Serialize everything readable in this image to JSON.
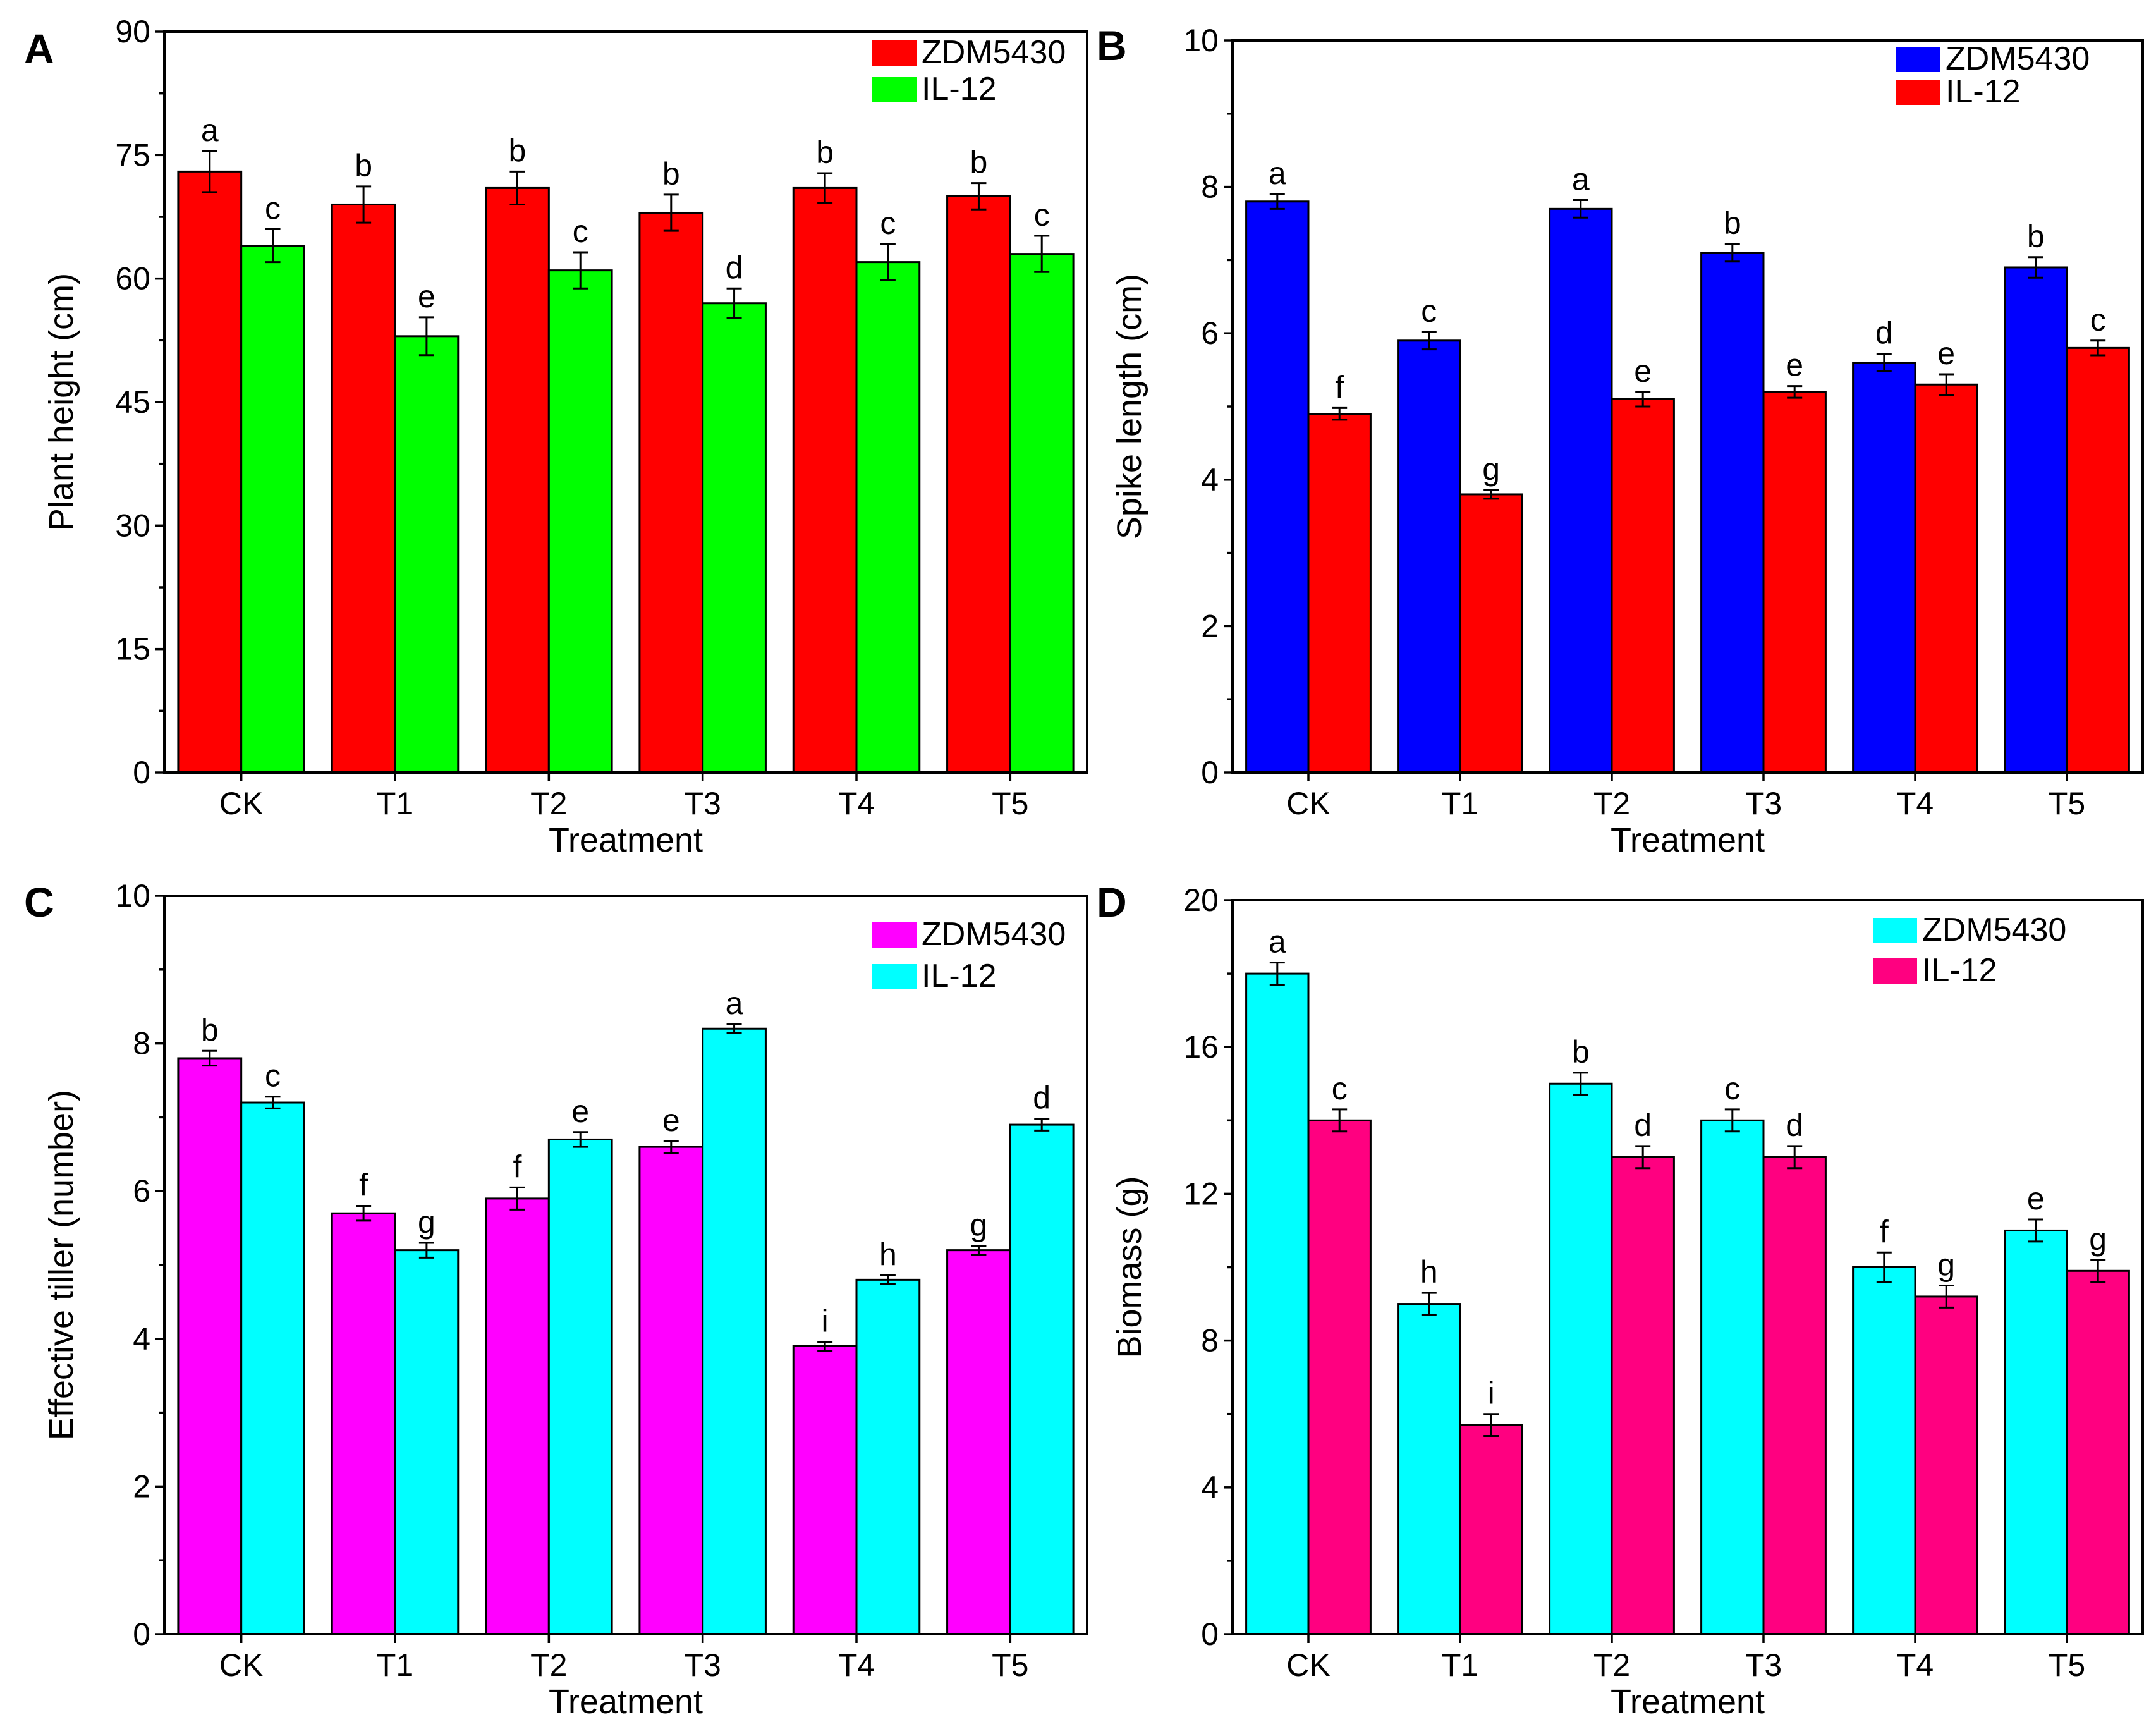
{
  "chart_data": [
    {
      "panel": "A",
      "type": "bar",
      "title": "",
      "xlabel": "Treatment",
      "ylabel": "Plant height (cm)",
      "categories": [
        "CK",
        "T1",
        "T2",
        "T3",
        "T4",
        "T5"
      ],
      "ylim": [
        0,
        90
      ],
      "yticks": [
        0,
        15,
        30,
        45,
        60,
        75,
        90
      ],
      "series": [
        {
          "name": "ZDM5430",
          "color": "#ff0000",
          "values": [
            73,
            69,
            71,
            68,
            71,
            70
          ],
          "errors": [
            2.5,
            2.2,
            2.0,
            2.2,
            1.8,
            1.6
          ],
          "letters": [
            "a",
            "b",
            "b",
            "b",
            "b",
            "b"
          ]
        },
        {
          "name": "IL-12",
          "color": "#00ff00",
          "values": [
            64,
            53,
            61,
            57,
            62,
            63
          ],
          "errors": [
            2.0,
            2.3,
            2.2,
            1.8,
            2.2,
            2.2
          ],
          "letters": [
            "c",
            "e",
            "c",
            "d",
            "c",
            "c"
          ]
        }
      ]
    },
    {
      "panel": "B",
      "type": "bar",
      "title": "",
      "xlabel": "Treatment",
      "ylabel": "Spike length (cm)",
      "categories": [
        "CK",
        "T1",
        "T2",
        "T3",
        "T4",
        "T5"
      ],
      "ylim": [
        0,
        10
      ],
      "yticks": [
        0,
        2,
        4,
        6,
        8,
        10
      ],
      "series": [
        {
          "name": "ZDM5430",
          "color": "#0000ff",
          "values": [
            7.8,
            5.9,
            7.7,
            7.1,
            5.6,
            6.9
          ],
          "errors": [
            0.1,
            0.12,
            0.12,
            0.12,
            0.12,
            0.14
          ],
          "letters": [
            "a",
            "c",
            "a",
            "b",
            "d",
            "b"
          ]
        },
        {
          "name": "IL-12",
          "color": "#ff0000",
          "values": [
            4.9,
            3.8,
            5.1,
            5.2,
            5.3,
            5.8
          ],
          "errors": [
            0.08,
            0.06,
            0.1,
            0.08,
            0.14,
            0.1
          ],
          "letters": [
            "f",
            "g",
            "e",
            "e",
            "e",
            "c"
          ]
        }
      ]
    },
    {
      "panel": "C",
      "type": "bar",
      "title": "",
      "xlabel": "Treatment",
      "ylabel": "Effective tiller (number)",
      "categories": [
        "CK",
        "T1",
        "T2",
        "T3",
        "T4",
        "T5"
      ],
      "ylim": [
        0,
        10
      ],
      "yticks": [
        0,
        2,
        4,
        6,
        8,
        10
      ],
      "series": [
        {
          "name": "ZDM5430",
          "color": "#ff00ff",
          "values": [
            7.8,
            5.7,
            5.9,
            6.6,
            3.9,
            5.2
          ],
          "errors": [
            0.1,
            0.1,
            0.15,
            0.08,
            0.06,
            0.06
          ],
          "letters": [
            "b",
            "f",
            "f",
            "e",
            "i",
            "g"
          ]
        },
        {
          "name": "IL-12",
          "color": "#00ffff",
          "values": [
            7.2,
            5.2,
            6.7,
            8.2,
            4.8,
            6.9
          ],
          "errors": [
            0.08,
            0.1,
            0.1,
            0.06,
            0.06,
            0.08
          ],
          "letters": [
            "c",
            "g",
            "e",
            "a",
            "h",
            "d"
          ]
        }
      ]
    },
    {
      "panel": "D",
      "type": "bar",
      "title": "",
      "xlabel": "Treatment",
      "ylabel": "Biomass (g)",
      "categories": [
        "CK",
        "T1",
        "T2",
        "T3",
        "T4",
        "T5"
      ],
      "ylim": [
        0,
        20
      ],
      "yticks": [
        0,
        4,
        8,
        12,
        16,
        20
      ],
      "series": [
        {
          "name": "ZDM5430",
          "color": "#00ffff",
          "values": [
            18,
            9,
            15,
            14,
            10,
            11
          ],
          "errors": [
            0.3,
            0.3,
            0.3,
            0.3,
            0.4,
            0.3
          ],
          "letters": [
            "a",
            "h",
            "b",
            "c",
            "f",
            "e"
          ]
        },
        {
          "name": "IL-12",
          "color": "#ff0080",
          "values": [
            14,
            5.7,
            13,
            13,
            9.2,
            9.9
          ],
          "errors": [
            0.3,
            0.3,
            0.3,
            0.3,
            0.3,
            0.3
          ],
          "letters": [
            "c",
            "i",
            "d",
            "d",
            "g",
            "g"
          ]
        }
      ]
    }
  ]
}
